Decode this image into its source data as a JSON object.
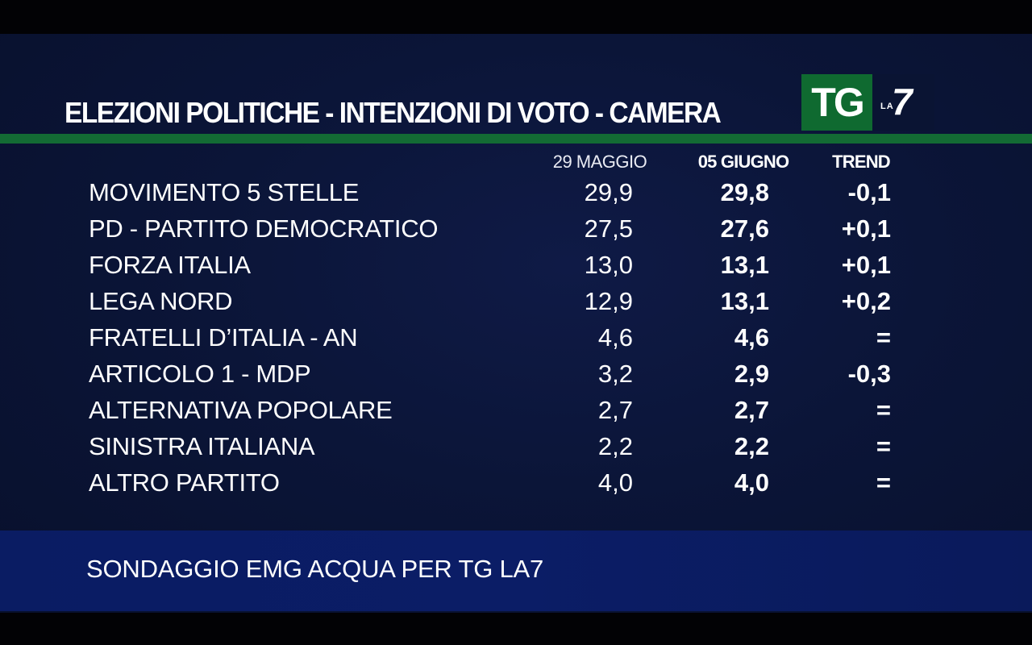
{
  "header": {
    "title": "ELEZIONI POLITICHE - INTENZIONI DI VOTO - CAMERA",
    "logo": {
      "tg": "TG",
      "la": "LA",
      "seven": "7"
    }
  },
  "columns": {
    "previous": "29 MAGGIO",
    "current": "05 GIUGNO",
    "trend": "TREND"
  },
  "rows": [
    {
      "party": "MOVIMENTO 5 STELLE",
      "prev": "29,9",
      "curr": "29,8",
      "trend": "-0,1"
    },
    {
      "party": "PD - PARTITO DEMOCRATICO",
      "prev": "27,5",
      "curr": "27,6",
      "trend": "+0,1"
    },
    {
      "party": "FORZA ITALIA",
      "prev": "13,0",
      "curr": "13,1",
      "trend": "+0,1"
    },
    {
      "party": "LEGA NORD",
      "prev": "12,9",
      "curr": "13,1",
      "trend": "+0,2"
    },
    {
      "party": "FRATELLI D’ITALIA - AN",
      "prev": "4,6",
      "curr": "4,6",
      "trend": "="
    },
    {
      "party": "ARTICOLO 1 - MDP",
      "prev": "3,2",
      "curr": "2,9",
      "trend": "-0,3"
    },
    {
      "party": "ALTERNATIVA POPOLARE",
      "prev": "2,7",
      "curr": "2,7",
      "trend": "="
    },
    {
      "party": "SINISTRA ITALIANA",
      "prev": "2,2",
      "curr": "2,2",
      "trend": "="
    },
    {
      "party": "ALTRO PARTITO",
      "prev": "4,0",
      "curr": "4,0",
      "trend": "="
    }
  ],
  "footer": {
    "source": "SONDAGGIO EMG ACQUA PER TG LA7"
  },
  "colors": {
    "background": "#0b1538",
    "accent_green": "#136b34",
    "footer_blue": "#0b1d66",
    "text": "#ffffff"
  },
  "chart_data": {
    "type": "table",
    "title": "ELEZIONI POLITICHE - INTENZIONI DI VOTO - CAMERA",
    "columns": [
      "29 MAGGIO",
      "05 GIUGNO",
      "TREND"
    ],
    "categories": [
      "MOVIMENTO 5 STELLE",
      "PD - PARTITO DEMOCRATICO",
      "FORZA ITALIA",
      "LEGA NORD",
      "FRATELLI D’ITALIA - AN",
      "ARTICOLO 1 - MDP",
      "ALTERNATIVA POPOLARE",
      "SINISTRA ITALIANA",
      "ALTRO PARTITO"
    ],
    "series": [
      {
        "name": "29 MAGGIO",
        "values": [
          29.9,
          27.5,
          13.0,
          12.9,
          4.6,
          3.2,
          2.7,
          2.2,
          4.0
        ]
      },
      {
        "name": "05 GIUGNO",
        "values": [
          29.8,
          27.6,
          13.1,
          13.1,
          4.6,
          2.9,
          2.7,
          2.2,
          4.0
        ]
      },
      {
        "name": "TREND",
        "values": [
          -0.1,
          0.1,
          0.1,
          0.2,
          0,
          -0.3,
          0,
          0,
          0
        ]
      }
    ],
    "source": "SONDAGGIO EMG ACQUA PER TG LA7"
  }
}
